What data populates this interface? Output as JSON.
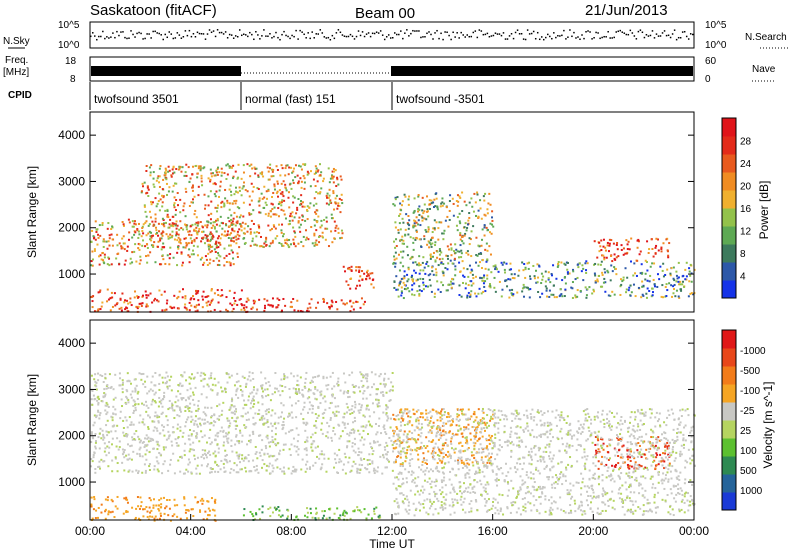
{
  "header": {
    "station": "Saskatoon (fitACF)",
    "beam": "Beam 00",
    "date": "21/Jun/2013"
  },
  "noise_panel": {
    "left_label": "N.Sky",
    "right_label": "N.Search",
    "left_ticks": [
      "10^5",
      "10^0"
    ],
    "right_ticks": [
      "10^5",
      "10^0"
    ]
  },
  "freq_panel": {
    "left_label_1": "Freq.",
    "left_label_2": "[MHz]",
    "left_ticks": [
      "18",
      "8"
    ],
    "right_label": "Nave",
    "right_ticks": [
      "60",
      "0"
    ]
  },
  "cpid": {
    "label": "CPID",
    "segments": [
      {
        "name": "twofsound 3501",
        "start": 0,
        "end": 6
      },
      {
        "name": "normal (fast) 151",
        "start": 6,
        "end": 12
      },
      {
        "name": "twofsound -3501",
        "start": 12,
        "end": 24
      }
    ]
  },
  "chart_data": [
    {
      "type": "heatmap",
      "name": "power",
      "ylabel": "Slant Range [km]",
      "yticks": [
        1000,
        2000,
        3000,
        4000
      ],
      "ylim": [
        180,
        4500
      ],
      "xlim": [
        0,
        24
      ],
      "colorbar": {
        "label": "Power [dB]",
        "ticks": [
          "4",
          "8",
          "12",
          "16",
          "20",
          "24",
          "28"
        ],
        "colors": [
          "#1533e8",
          "#2d58a8",
          "#3d7a5d",
          "#5ea954",
          "#93c24b",
          "#f0b02f",
          "#f08c22",
          "#e85a1e",
          "#e32b1a",
          "#e0141a"
        ]
      },
      "echo_regions": [
        {
          "x0": 0,
          "x1": 6,
          "y0": 1200,
          "y1": 2200,
          "level": 0.65
        },
        {
          "x0": 2,
          "x1": 10,
          "y0": 1600,
          "y1": 3400,
          "level": 0.6
        },
        {
          "x0": 0,
          "x1": 6,
          "y0": 200,
          "y1": 700,
          "level": 0.85
        },
        {
          "x0": 6,
          "x1": 11,
          "y0": 200,
          "y1": 500,
          "level": 0.9
        },
        {
          "x0": 12,
          "x1": 24,
          "y0": 500,
          "y1": 1300,
          "level": 0.3
        },
        {
          "x0": 12,
          "x1": 16,
          "y0": 1300,
          "y1": 2800,
          "level": 0.45
        },
        {
          "x0": 20,
          "x1": 23,
          "y0": 1300,
          "y1": 1800,
          "level": 0.85
        },
        {
          "x0": 10,
          "x1": 11.5,
          "y0": 700,
          "y1": 1200,
          "level": 0.8
        }
      ]
    },
    {
      "type": "heatmap",
      "name": "velocity",
      "ylabel": "Slant Range [km]",
      "xlabel": "Time UT",
      "yticks": [
        1000,
        2000,
        3000,
        4000
      ],
      "xticks": [
        "00:00",
        "04:00",
        "08:00",
        "12:00",
        "16:00",
        "20:00",
        "00:00"
      ],
      "ylim": [
        180,
        4500
      ],
      "xlim": [
        0,
        24
      ],
      "colorbar": {
        "label": "Velocity [m s^-1]",
        "ticks": [
          "1000",
          "500",
          "100",
          "25",
          "-25",
          "-100",
          "-500",
          "-1000"
        ],
        "colors": [
          "#1a3ad6",
          "#25649a",
          "#2e8a52",
          "#5cc030",
          "#b5d460",
          "#c8c8c4",
          "#f5a524",
          "#f27c1a",
          "#e8471a",
          "#e01818"
        ]
      },
      "echo_regions": [
        {
          "x0": 0,
          "x1": 12,
          "y0": 1200,
          "y1": 3400,
          "class": "ground"
        },
        {
          "x0": 0,
          "x1": 5,
          "y0": 180,
          "y1": 700,
          "class": "away"
        },
        {
          "x0": 12,
          "x1": 16,
          "y0": 1400,
          "y1": 2600,
          "class": "away"
        },
        {
          "x0": 20,
          "x1": 23,
          "y0": 1300,
          "y1": 2000,
          "class": "away_fast"
        },
        {
          "x0": 6,
          "x1": 11.5,
          "y0": 200,
          "y1": 500,
          "class": "toward_slow"
        },
        {
          "x0": 12,
          "x1": 24,
          "y0": 300,
          "y1": 2600,
          "class": "ground"
        }
      ]
    }
  ]
}
